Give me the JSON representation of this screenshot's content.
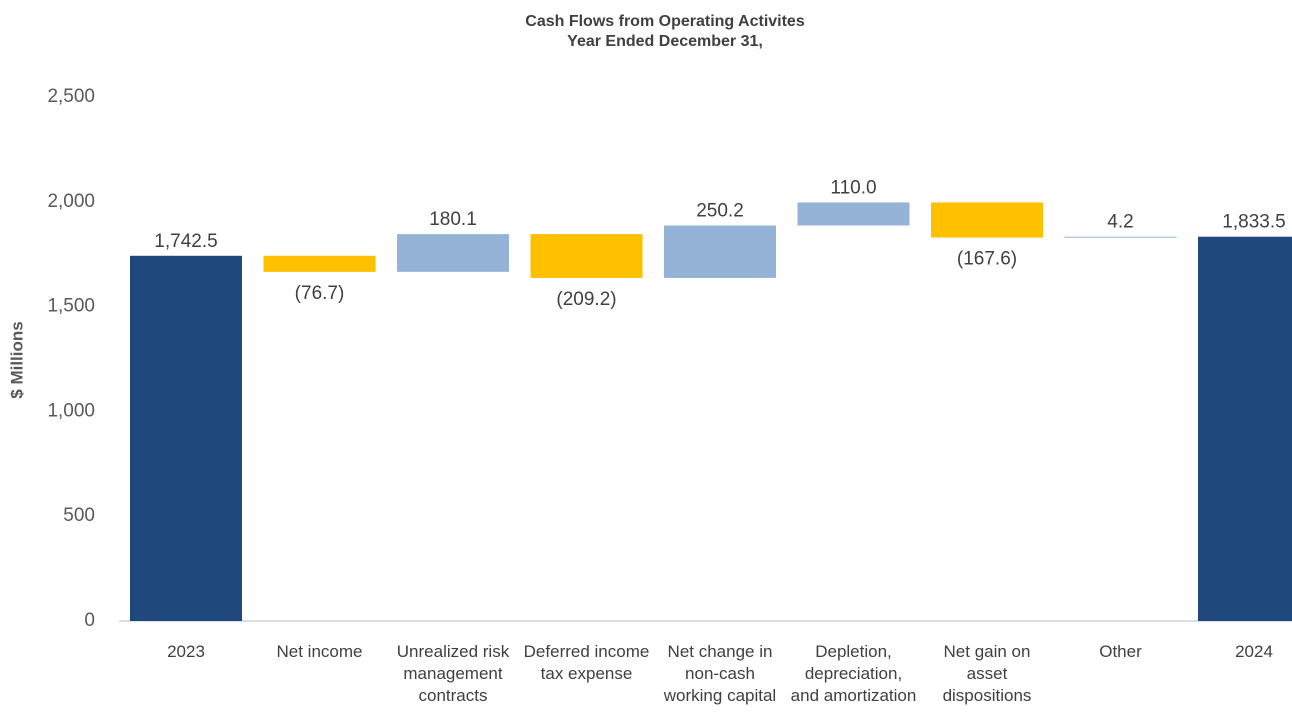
{
  "chart_data": {
    "type": "waterfall",
    "title": "Cash Flows from Operating Activites",
    "subtitle": "Year Ended December 31,",
    "y_label": "$ Millions",
    "categories": [
      "2023",
      "Net income",
      "Unrealized risk management contracts",
      "Deferred income tax expense",
      "Net change in non-cash working capital",
      "Depletion, depreciation, and amortization",
      "Net gain on asset dispositions",
      "Other",
      "2024"
    ],
    "values": [
      1742.5,
      -76.7,
      180.1,
      -209.2,
      250.2,
      110.0,
      -167.6,
      4.2,
      1833.5
    ],
    "value_labels": [
      "1,742.5",
      "(76.7)",
      "180.1",
      "(209.2)",
      "250.2",
      "110.0",
      "(167.6)",
      "4.2",
      "1,833.5"
    ],
    "colors": {
      "total": "#1f497d",
      "increase": "#95b3d7",
      "decrease": "#ffc000"
    },
    "ylim": [
      0,
      2500
    ],
    "yticks": [
      0,
      500,
      {
        "value": 1000,
        "label": "1,000"
      },
      {
        "value": 1500,
        "label": "1,500"
      },
      {
        "value": 2000,
        "label": "2,000"
      },
      {
        "value": 2500,
        "label": "2,500"
      }
    ],
    "grid": false
  }
}
